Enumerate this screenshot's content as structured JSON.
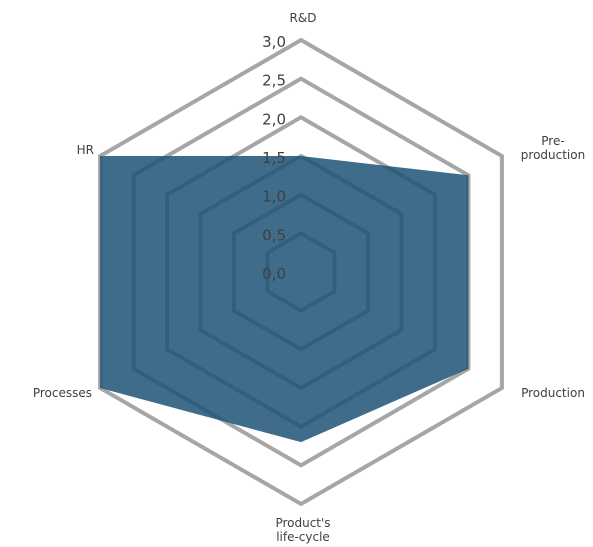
{
  "chart_data": {
    "type": "radar",
    "title": "",
    "axes": [
      {
        "key": "rnd",
        "lines": [
          "R&D"
        ]
      },
      {
        "key": "preprod",
        "lines": [
          "Pre-",
          "production"
        ]
      },
      {
        "key": "production",
        "lines": [
          "Production"
        ]
      },
      {
        "key": "lifecycle",
        "lines": [
          "Product's",
          "life-cycle"
        ]
      },
      {
        "key": "processes",
        "lines": [
          "Processes"
        ]
      },
      {
        "key": "hr",
        "lines": [
          "HR"
        ]
      }
    ],
    "ticks": [
      "0,0",
      "0,5",
      "1,0",
      "1,5",
      "2,0",
      "2,5",
      "3,0"
    ],
    "tick_values": [
      0,
      0.5,
      1.0,
      1.5,
      2.0,
      2.5,
      3.0
    ],
    "range": [
      0,
      3.0
    ],
    "grid": true,
    "legend": "none",
    "series": [
      {
        "values": [
          1.5,
          2.5,
          2.5,
          2.2,
          3.0,
          3.0
        ],
        "color": "#1f5477",
        "opacity": 0.86
      }
    ],
    "grid_color": "#a6a6a6",
    "label_color": "#404040"
  }
}
